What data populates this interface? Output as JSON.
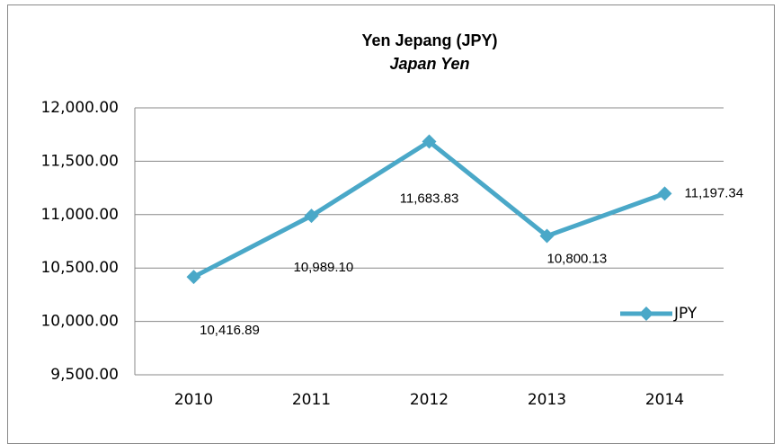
{
  "chart_data": {
    "type": "line",
    "title": "Yen Jepang (JPY)",
    "subtitle": "Japan Yen",
    "categories": [
      "2010",
      "2011",
      "2012",
      "2013",
      "2014"
    ],
    "series": [
      {
        "name": "JPY",
        "color": "#4aa8c8",
        "values": [
          10416.89,
          10989.1,
          11683.83,
          10800.13,
          11197.34
        ],
        "value_labels": [
          "10,416.89",
          "10,989.10",
          "11,683.83",
          "10,800.13",
          "11,197.34"
        ]
      }
    ],
    "ylim": [
      9500,
      12000
    ],
    "yticks": [
      {
        "value": 9500,
        "label": "9,500.00"
      },
      {
        "value": 10000,
        "label": "10,000.00"
      },
      {
        "value": 10500,
        "label": "10,500.00"
      },
      {
        "value": 11000,
        "label": "11,000.00"
      },
      {
        "value": 11500,
        "label": "11,500.00"
      },
      {
        "value": 12000,
        "label": "12,000.00"
      }
    ],
    "grid": true,
    "legend": "right"
  }
}
